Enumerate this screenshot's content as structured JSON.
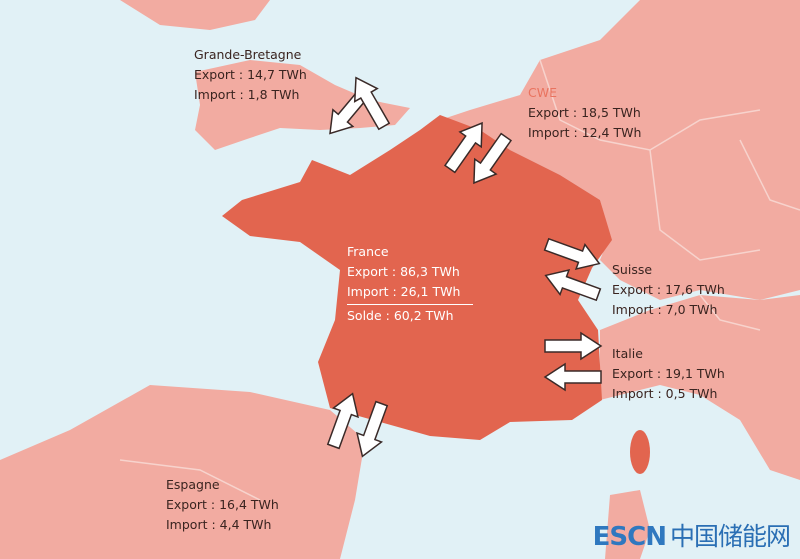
{
  "colors": {
    "sea": "#e1f1f6",
    "neighbors": "#f2aba1",
    "france": "#e2654f",
    "borders": "#f7cfc8"
  },
  "regions": {
    "gb": {
      "name": "Grande-Bretagne",
      "export": "Export : 14,7 TWh",
      "import": "Import : 1,8 TWh"
    },
    "cwe": {
      "name": "CWE",
      "export": "Export : 18,5 TWh",
      "import": "Import : 12,4 TWh"
    },
    "france": {
      "name": "France",
      "export": "Export : 86,3 TWh",
      "import": "Import : 26,1 TWh",
      "balance": "Solde : 60,2 TWh"
    },
    "suisse": {
      "name": "Suisse",
      "export": "Export : 17,6 TWh",
      "import": "Import : 7,0 TWh"
    },
    "italie": {
      "name": "Italie",
      "export": "Export : 19,1 TWh",
      "import": "Import : 0,5 TWh"
    },
    "espagne": {
      "name": "Espagne",
      "export": "Export : 16,4 TWh",
      "import": "Import : 4,4 TWh"
    }
  },
  "watermark": {
    "latin": "ESCN",
    "chinese": "中国储能网"
  }
}
